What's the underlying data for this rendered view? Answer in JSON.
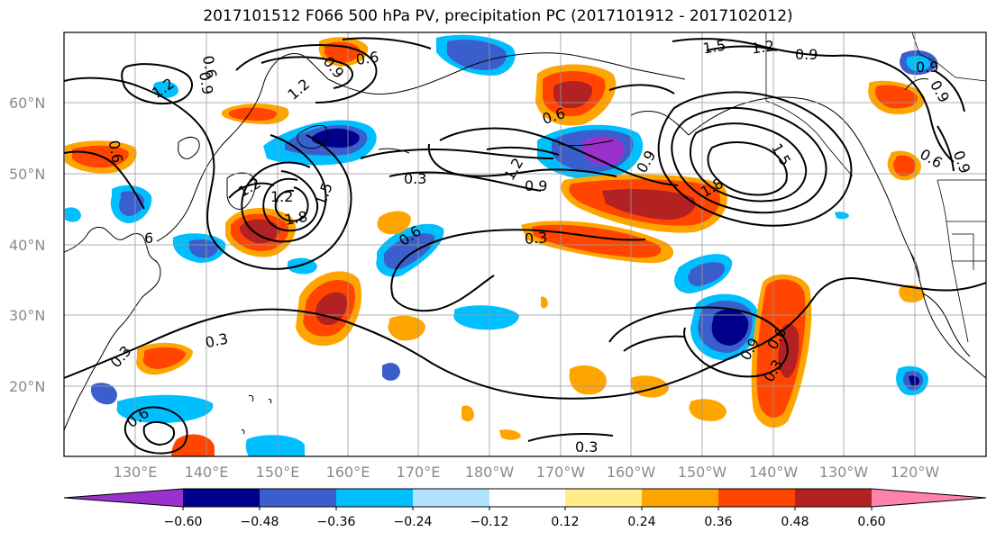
{
  "title": "2017101512 F066 500 hPa PV, precipitation PC (2017101912 - 2017102012)",
  "map": {
    "lon_labels": [
      "130°E",
      "140°E",
      "150°E",
      "160°E",
      "170°E",
      "180°W",
      "170°W",
      "160°W",
      "150°W",
      "140°W",
      "130°W",
      "120°W"
    ],
    "lat_labels": [
      "60°N",
      "50°N",
      "40°N",
      "30°N",
      "20°N"
    ],
    "contour_labels": [
      "0.6",
      "0.9",
      "1.2",
      "1.5",
      "1.2",
      "0.9",
      "0.9",
      "0.6",
      "0.9",
      "1.2",
      "0.9",
      "1.2",
      "1.2",
      "1.8",
      "1.5",
      "0.3",
      "0.9",
      "0.6",
      "1.2",
      "1.5",
      "1.8",
      "0.9",
      "0.6",
      "0.3",
      "6",
      "0.3",
      "0.3",
      "0.9",
      "0.6",
      "0.3",
      "0.6",
      "0.3",
      "0.6",
      "0.9",
      "0.6"
    ]
  },
  "colorbar": {
    "colors": [
      "#9932cc",
      "#00008b",
      "#3a5fcd",
      "#00bfff",
      "#b0e2ff",
      "#ffffff",
      "#ffec8b",
      "#ffa500",
      "#ff4500",
      "#b22222",
      "#ff82ab"
    ],
    "tick_labels": [
      "−0.60",
      "−0.48",
      "−0.36",
      "−0.24",
      "−0.12",
      "0.12",
      "0.24",
      "0.36",
      "0.48",
      "0.60"
    ]
  }
}
